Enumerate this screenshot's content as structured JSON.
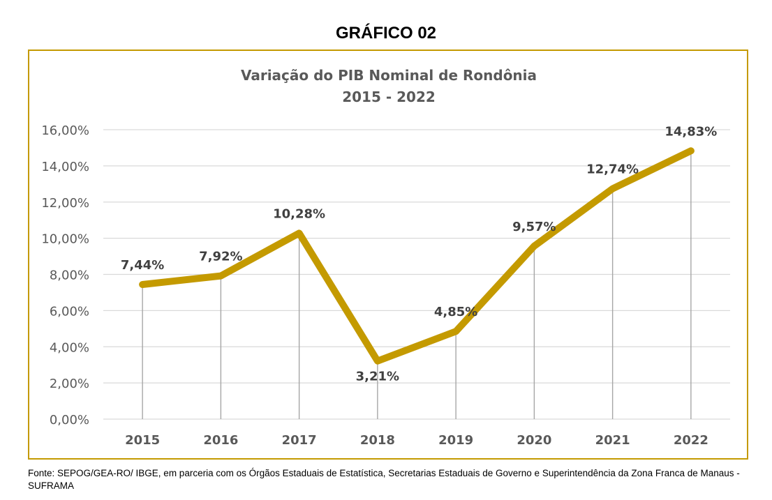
{
  "heading": "GRÁFICO 02",
  "chart_data": {
    "type": "line",
    "title": "Variação do PIB Nominal de Rondônia",
    "subtitle": "2015 - 2022",
    "categories": [
      "2015",
      "2016",
      "2017",
      "2018",
      "2019",
      "2020",
      "2021",
      "2022"
    ],
    "values": [
      7.44,
      7.92,
      10.28,
      3.21,
      4.85,
      9.57,
      12.74,
      14.83
    ],
    "data_labels": [
      "7,44%",
      "7,92%",
      "10,28%",
      "3,21%",
      "4,85%",
      "9,57%",
      "12,74%",
      "14,83%"
    ],
    "y_ticks": [
      0,
      2,
      4,
      6,
      8,
      10,
      12,
      14,
      16
    ],
    "y_tick_labels": [
      "0,00%",
      "2,00%",
      "4,00%",
      "6,00%",
      "8,00%",
      "10,00%",
      "12,00%",
      "14,00%",
      "16,00%"
    ],
    "ylim": [
      0,
      16
    ],
    "grid": true,
    "drop_lines": true,
    "line_color": "#C49A00",
    "frame_color": "#C49A00",
    "grid_color": "#D9D9D9",
    "drop_line_color": "#A6A6A6",
    "text_color": "#595959",
    "label_color": "#404040"
  },
  "source": "Fonte: SEPOG/GEA-RO/ IBGE, em parceria com os Órgãos Estaduais de Estatística, Secretarias Estaduais de Governo e Superintendência da Zona Franca de Manaus - SUFRAMA"
}
